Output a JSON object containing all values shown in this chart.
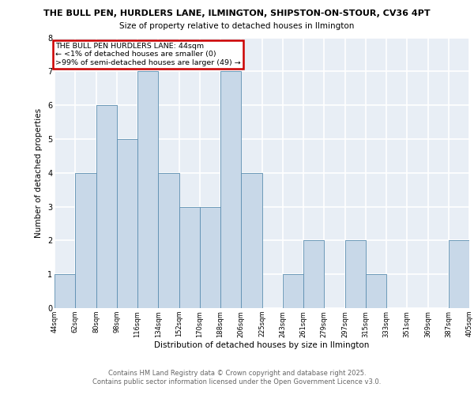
{
  "title_line1": "THE BULL PEN, HURDLERS LANE, ILMINGTON, SHIPSTON-ON-STOUR, CV36 4PT",
  "title_line2": "Size of property relative to detached houses in Ilmington",
  "xlabel": "Distribution of detached houses by size in Ilmington",
  "ylabel": "Number of detached properties",
  "footer_line1": "Contains HM Land Registry data © Crown copyright and database right 2025.",
  "footer_line2": "Contains public sector information licensed under the Open Government Licence v3.0.",
  "bins": [
    "44sqm",
    "62sqm",
    "80sqm",
    "98sqm",
    "116sqm",
    "134sqm",
    "152sqm",
    "170sqm",
    "188sqm",
    "206sqm",
    "225sqm",
    "243sqm",
    "261sqm",
    "279sqm",
    "297sqm",
    "315sqm",
    "333sqm",
    "351sqm",
    "369sqm",
    "387sqm",
    "405sqm"
  ],
  "values": [
    1,
    4,
    6,
    5,
    7,
    4,
    3,
    3,
    7,
    4,
    0,
    1,
    2,
    0,
    2,
    1,
    0,
    0,
    0,
    2
  ],
  "bar_color": "#c8d8e8",
  "bar_edge_color": "#5b8db0",
  "annotation_text": "THE BULL PEN HURDLERS LANE: 44sqm\n← <1% of detached houses are smaller (0)\n>99% of semi-detached houses are larger (49) →",
  "annotation_box_edge_color": "#cc0000",
  "background_color": "#e8eef5",
  "grid_color": "#ffffff",
  "ylim": [
    0,
    8
  ],
  "yticks": [
    0,
    1,
    2,
    3,
    4,
    5,
    6,
    7,
    8
  ]
}
